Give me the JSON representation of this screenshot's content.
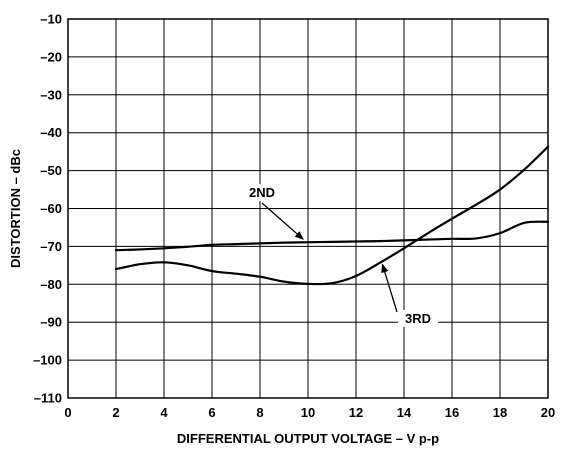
{
  "chart_data": {
    "type": "line",
    "xlabel": "DIFFERENTIAL OUTPUT VOLTAGE – V p-p",
    "ylabel": "DISTORTION – dBc",
    "xlim": [
      0,
      20
    ],
    "ylim": [
      -110,
      -10
    ],
    "x_ticks": [
      "0",
      "2",
      "4",
      "6",
      "8",
      "10",
      "12",
      "14",
      "16",
      "18",
      "20"
    ],
    "y_ticks": [
      "–10",
      "–20",
      "–30",
      "–40",
      "–50",
      "–60",
      "–70",
      "–80",
      "–90",
      "–100",
      "–110"
    ],
    "grid": true,
    "legend": "none",
    "series": [
      {
        "name": "2ND",
        "x": [
          2,
          3,
          4,
          5,
          6,
          7,
          8,
          9,
          10,
          11,
          12,
          13,
          14,
          15,
          16,
          17,
          18,
          19,
          20
        ],
        "y": [
          -71,
          -70.8,
          -70.5,
          -70.1,
          -69.6,
          -69.4,
          -69.2,
          -69.0,
          -68.9,
          -68.8,
          -68.7,
          -68.6,
          -68.4,
          -68.2,
          -68.0,
          -67.9,
          -66.5,
          -63.8,
          -63.5
        ]
      },
      {
        "name": "3RD",
        "x": [
          2,
          3,
          4,
          5,
          6,
          7,
          8,
          9,
          10,
          11,
          12,
          13,
          14,
          15,
          16,
          17,
          18,
          19,
          20
        ],
        "y": [
          -76,
          -74.7,
          -74.2,
          -75.0,
          -76.5,
          -77.2,
          -78.0,
          -79.3,
          -79.9,
          -79.7,
          -77.8,
          -74.3,
          -70.5,
          -66.5,
          -62.7,
          -59.0,
          -55.0,
          -49.8,
          -43.7
        ]
      }
    ],
    "annotations": [
      {
        "text": "2ND",
        "series": "2ND"
      },
      {
        "text": "3RD",
        "series": "3RD"
      }
    ]
  }
}
